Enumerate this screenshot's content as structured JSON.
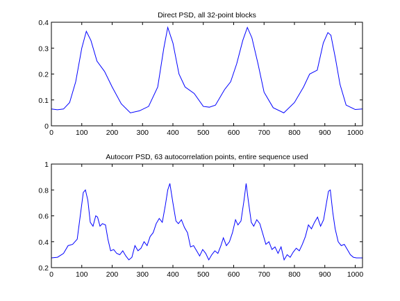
{
  "chart_data": [
    {
      "type": "line",
      "title": "Direct PSD, all 32-point blocks",
      "xlabel": "",
      "ylabel": "",
      "xlim": [
        0,
        1024
      ],
      "ylim": [
        0,
        0.4
      ],
      "xticks": [
        0,
        100,
        200,
        300,
        400,
        500,
        600,
        700,
        800,
        900,
        1000
      ],
      "yticks": [
        0,
        0.1,
        0.2,
        0.3,
        0.4
      ],
      "ytick_labels": [
        "0",
        "0.1",
        "0.2",
        "0.3",
        "0.4"
      ],
      "grid": false,
      "series": [
        {
          "color": "#0000ff",
          "x": [
            0,
            20,
            40,
            60,
            80,
            100,
            115,
            130,
            150,
            175,
            200,
            230,
            260,
            290,
            320,
            350,
            370,
            383,
            400,
            420,
            440,
            470,
            500,
            520,
            540,
            570,
            590,
            610,
            630,
            645,
            660,
            680,
            700,
            730,
            765,
            800,
            830,
            850,
            875,
            895,
            910,
            920,
            935,
            950,
            970,
            1000,
            1024
          ],
          "y": [
            0.065,
            0.062,
            0.065,
            0.09,
            0.17,
            0.3,
            0.365,
            0.33,
            0.25,
            0.21,
            0.15,
            0.085,
            0.05,
            0.058,
            0.075,
            0.15,
            0.3,
            0.38,
            0.32,
            0.2,
            0.15,
            0.125,
            0.075,
            0.072,
            0.08,
            0.14,
            0.17,
            0.24,
            0.33,
            0.38,
            0.34,
            0.24,
            0.13,
            0.07,
            0.05,
            0.09,
            0.15,
            0.2,
            0.215,
            0.32,
            0.36,
            0.35,
            0.26,
            0.16,
            0.08,
            0.063,
            0.065
          ]
        }
      ]
    },
    {
      "type": "line",
      "title": "Autocorr PSD, 63 autocorrelation points, entire sequence used",
      "xlabel": "",
      "ylabel": "",
      "xlim": [
        0,
        1024
      ],
      "ylim": [
        0.2,
        1.0
      ],
      "xticks": [
        0,
        100,
        200,
        300,
        400,
        500,
        600,
        700,
        800,
        900,
        1000
      ],
      "yticks": [
        0.2,
        0.4,
        0.6,
        0.8,
        1.0
      ],
      "ytick_labels": [
        "0.2",
        "0.4",
        "0.6",
        "0.8",
        "1"
      ],
      "grid": false,
      "series": [
        {
          "color": "#0000ff",
          "x": [
            0,
            20,
            40,
            55,
            70,
            85,
            95,
            105,
            112,
            120,
            128,
            137,
            146,
            152,
            160,
            168,
            178,
            186,
            195,
            205,
            215,
            225,
            235,
            245,
            255,
            265,
            275,
            285,
            295,
            305,
            315,
            325,
            335,
            345,
            355,
            365,
            375,
            383,
            390,
            400,
            410,
            418,
            428,
            438,
            448,
            458,
            468,
            478,
            488,
            498,
            508,
            518,
            528,
            538,
            548,
            558,
            566,
            576,
            586,
            596,
            606,
            614,
            624,
            634,
            641,
            648,
            658,
            666,
            676,
            686,
            696,
            706,
            716,
            726,
            736,
            746,
            756,
            766,
            776,
            786,
            796,
            806,
            816,
            826,
            836,
            846,
            856,
            866,
            876,
            886,
            896,
            904,
            912,
            918,
            926,
            934,
            944,
            954,
            964,
            974,
            984,
            994,
            1004,
            1024
          ],
          "y": [
            0.275,
            0.28,
            0.31,
            0.37,
            0.38,
            0.42,
            0.6,
            0.78,
            0.8,
            0.72,
            0.55,
            0.52,
            0.6,
            0.59,
            0.52,
            0.54,
            0.53,
            0.42,
            0.33,
            0.34,
            0.31,
            0.3,
            0.33,
            0.29,
            0.26,
            0.28,
            0.37,
            0.33,
            0.35,
            0.4,
            0.37,
            0.44,
            0.47,
            0.54,
            0.58,
            0.55,
            0.68,
            0.8,
            0.85,
            0.7,
            0.56,
            0.54,
            0.57,
            0.51,
            0.47,
            0.36,
            0.37,
            0.33,
            0.29,
            0.34,
            0.31,
            0.26,
            0.3,
            0.33,
            0.31,
            0.37,
            0.43,
            0.37,
            0.4,
            0.47,
            0.57,
            0.53,
            0.56,
            0.72,
            0.85,
            0.72,
            0.55,
            0.52,
            0.57,
            0.54,
            0.46,
            0.38,
            0.4,
            0.34,
            0.36,
            0.31,
            0.36,
            0.26,
            0.3,
            0.28,
            0.32,
            0.35,
            0.33,
            0.38,
            0.44,
            0.53,
            0.5,
            0.55,
            0.59,
            0.52,
            0.57,
            0.68,
            0.79,
            0.8,
            0.63,
            0.5,
            0.4,
            0.37,
            0.38,
            0.34,
            0.3,
            0.28,
            0.275,
            0.275
          ]
        }
      ]
    }
  ]
}
